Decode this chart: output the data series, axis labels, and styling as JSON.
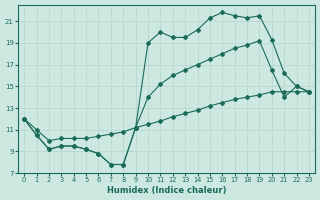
{
  "xlabel": "Humidex (Indice chaleur)",
  "bg_color": "#cce8e0",
  "line_color": "#1a6b5a",
  "grid_color": "#b8d8d0",
  "xlim": [
    -0.5,
    23.5
  ],
  "ylim": [
    7,
    22.5
  ],
  "yticks": [
    7,
    9,
    11,
    13,
    15,
    17,
    19,
    21
  ],
  "xticks": [
    0,
    1,
    2,
    3,
    4,
    5,
    6,
    7,
    8,
    9,
    10,
    11,
    12,
    13,
    14,
    15,
    16,
    17,
    18,
    19,
    20,
    21,
    22,
    23
  ],
  "line1_x": [
    0,
    1,
    2,
    3,
    4,
    5,
    6,
    7,
    8,
    9,
    10,
    11,
    12,
    13,
    14,
    15,
    16,
    17,
    18,
    19,
    20,
    21,
    22,
    23
  ],
  "line1_y": [
    12.0,
    10.5,
    9.2,
    9.5,
    9.5,
    9.2,
    8.8,
    7.8,
    7.8,
    11.2,
    19.0,
    20.0,
    19.5,
    19.5,
    20.2,
    21.3,
    21.8,
    21.5,
    21.3,
    21.5,
    19.3,
    16.2,
    15.0,
    14.5
  ],
  "line2_x": [
    0,
    1,
    2,
    3,
    4,
    5,
    6,
    7,
    8,
    9,
    10,
    11,
    12,
    13,
    14,
    15,
    16,
    17,
    18,
    19,
    20,
    21,
    22,
    23
  ],
  "line2_y": [
    12.0,
    10.5,
    9.2,
    9.5,
    9.5,
    9.2,
    8.8,
    7.8,
    7.8,
    11.2,
    14.0,
    15.2,
    16.0,
    16.5,
    17.0,
    17.5,
    18.0,
    18.5,
    18.8,
    19.2,
    16.5,
    14.0,
    15.0,
    14.5
  ],
  "line3_x": [
    0,
    1,
    2,
    3,
    4,
    5,
    6,
    7,
    8,
    9,
    10,
    11,
    12,
    13,
    14,
    15,
    16,
    17,
    18,
    19,
    20,
    21,
    22,
    23
  ],
  "line3_y": [
    12.0,
    11.0,
    10.0,
    10.2,
    10.2,
    10.2,
    10.4,
    10.6,
    10.8,
    11.2,
    11.5,
    11.8,
    12.2,
    12.5,
    12.8,
    13.2,
    13.5,
    13.8,
    14.0,
    14.2,
    14.5,
    14.5,
    14.5,
    14.5
  ]
}
